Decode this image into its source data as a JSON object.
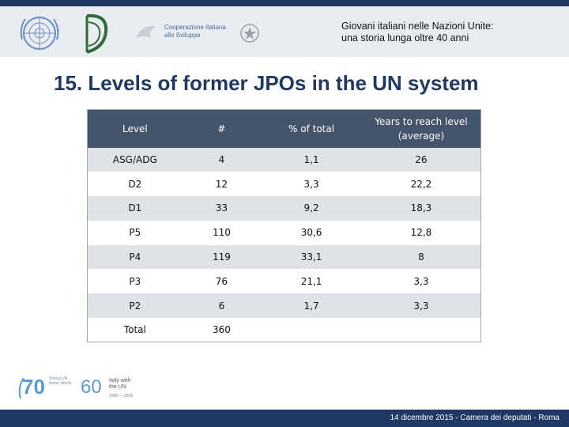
{
  "header": {
    "title_line1": "Giovani italiani nelle Nazioni Unite:",
    "title_line2": "una storia lunga oltre 40 anni",
    "logos": [
      "un-emblem-icon",
      "italian-mission-logo-icon",
      "cooperazione-italiana-logo-icon",
      "italian-republic-emblem-icon"
    ],
    "coop_line1": "Cooperazione Italiana",
    "coop_line2": "allo Sviluppo"
  },
  "slide_title": "15. Levels of former JPOs in the UN system",
  "table": {
    "headers": [
      "Level",
      "#",
      "% of total",
      "Years to reach level (average)"
    ],
    "header_years_line1": "Years to reach level",
    "header_years_line2": "(average)",
    "rows": [
      [
        "ASG/ADG",
        "4",
        "1,1",
        "26"
      ],
      [
        "D2",
        "12",
        "3,3",
        "22,2"
      ],
      [
        "D1",
        "33",
        "9,2",
        "18,3"
      ],
      [
        "P5",
        "110",
        "30,6",
        "12,8"
      ],
      [
        "P4",
        "119",
        "33,1",
        "8"
      ],
      [
        "P3",
        "76",
        "21,1",
        "3,3"
      ],
      [
        "P2",
        "6",
        "1,7",
        "3,3"
      ],
      [
        "Total",
        "360",
        "",
        ""
      ]
    ],
    "colors": {
      "header_bg": "#44546a",
      "alt_row_bg": "#dfe3e8"
    }
  },
  "footer": {
    "text": "14 dicembre 2015 - Camera dei deputati - Roma",
    "logo_70": "70",
    "logo_70_text": "Strong UN. Better World.",
    "logo_60": "60",
    "logo_60_text": "Italy with the UN",
    "logo_60_years": "1955 — 2015",
    "colors": {
      "band": "#1f3864"
    }
  }
}
